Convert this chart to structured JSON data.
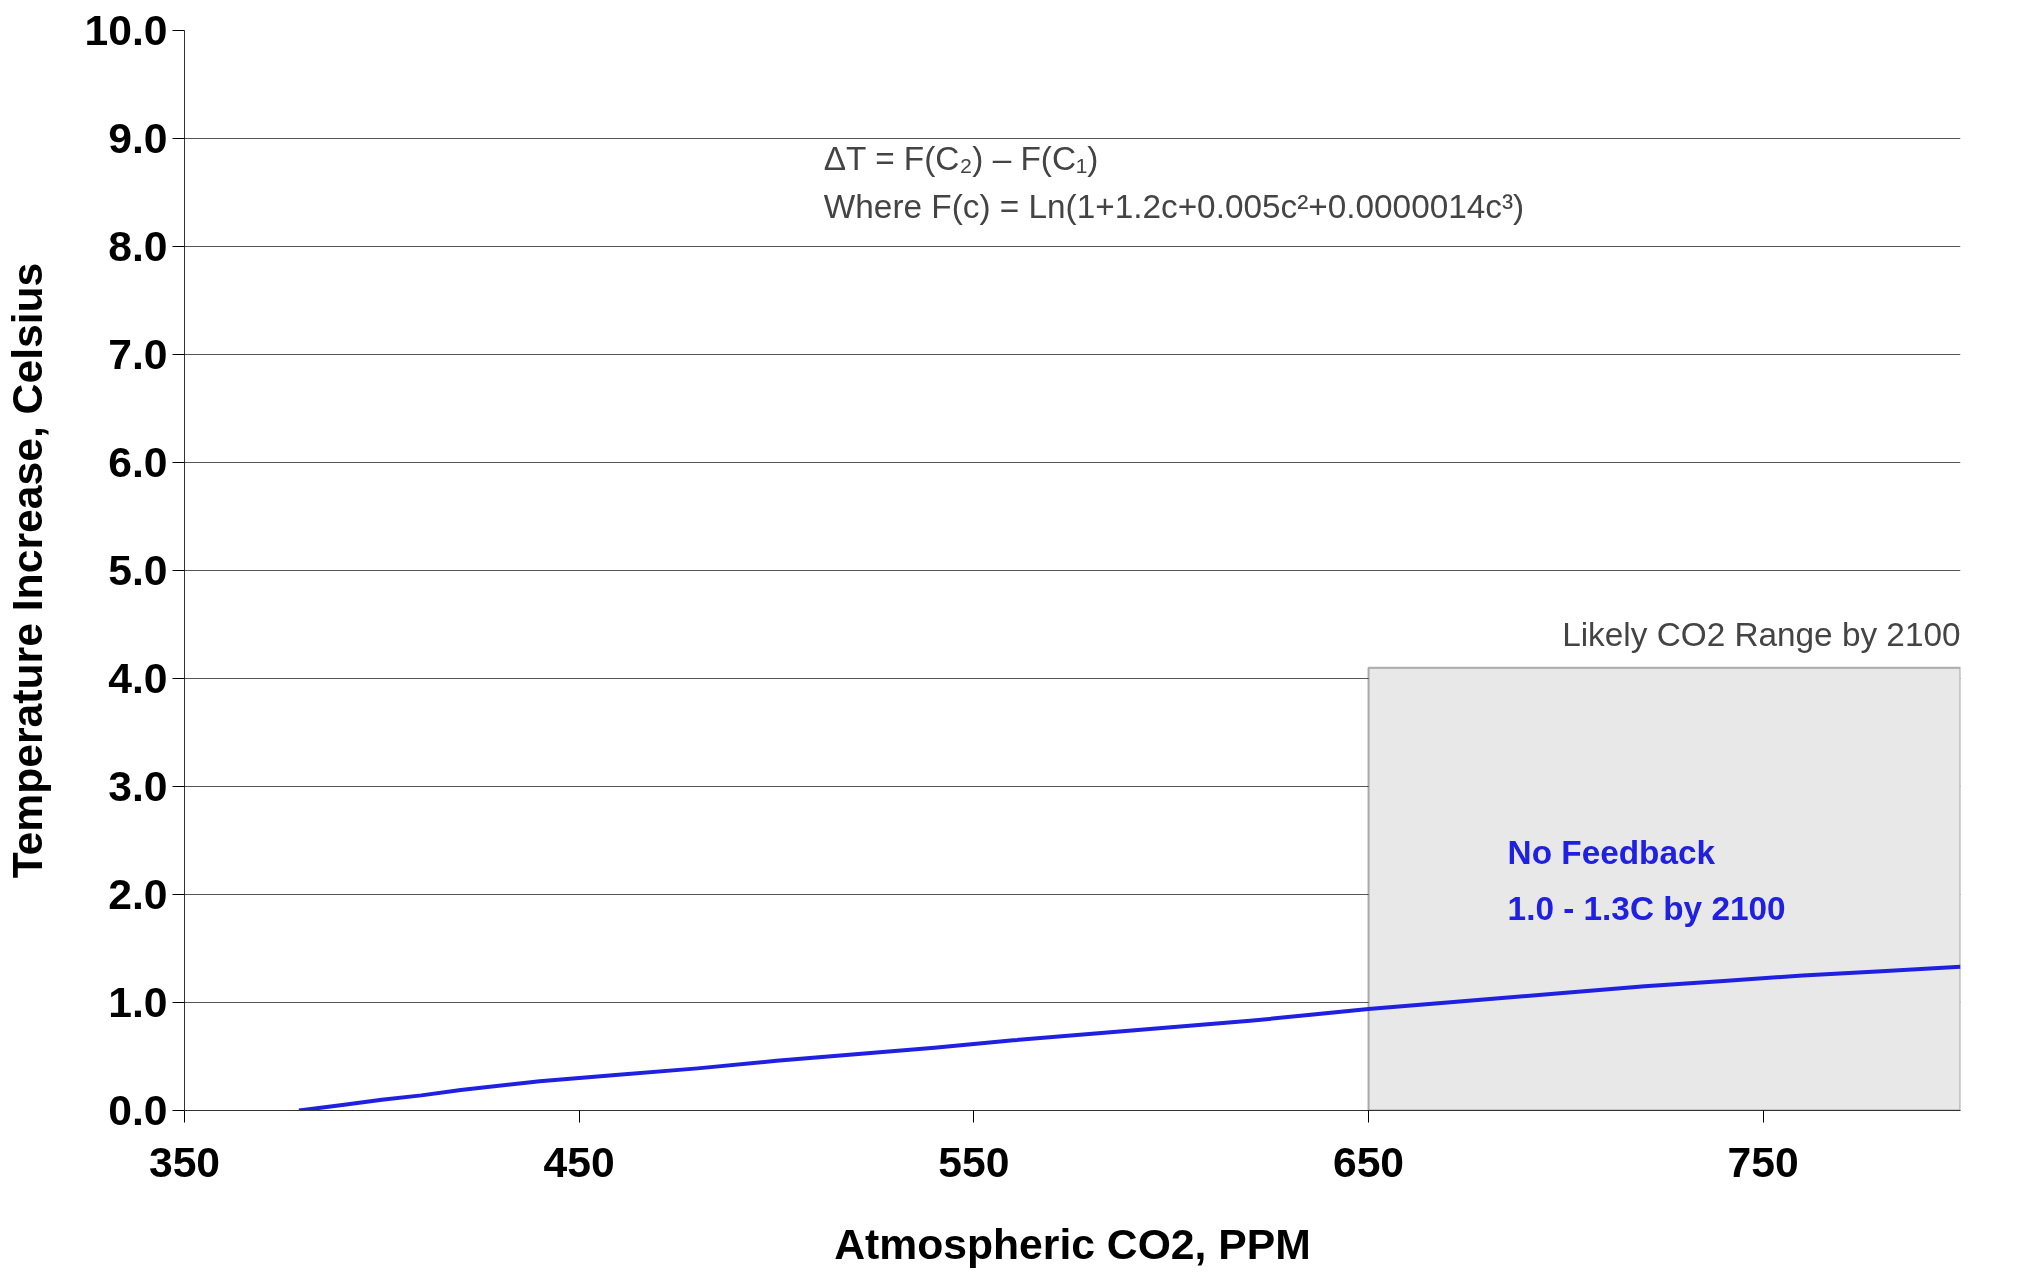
{
  "chart_data": {
    "type": "line",
    "xlabel": "Atmospheric CO2, PPM",
    "ylabel": "Temperature Increase, Celsius",
    "x": [
      379,
      390,
      400,
      410,
      420,
      440,
      460,
      480,
      500,
      520,
      540,
      560,
      580,
      600,
      620,
      650,
      680,
      700,
      720,
      740,
      760,
      780,
      800
    ],
    "series": [
      {
        "color": "#2020e0",
        "values": [
          0,
          0.05,
          0.1,
          0.14,
          0.19,
          0.27,
          0.33,
          0.39,
          0.46,
          0.52,
          0.58,
          0.65,
          0.71,
          0.77,
          0.83,
          0.94,
          1.03,
          1.09,
          1.15,
          1.2,
          1.25,
          1.29,
          1.33
        ]
      }
    ],
    "xlim": [
      350,
      800
    ],
    "ylim": [
      0,
      10
    ],
    "xticks": [
      350,
      450,
      550,
      650,
      750
    ],
    "yticks": [
      {
        "value": 0,
        "label": "0.0"
      },
      {
        "value": 1,
        "label": "1.0"
      },
      {
        "value": 2,
        "label": "2.0"
      },
      {
        "value": 3,
        "label": "3.0"
      },
      {
        "value": 4,
        "label": "4.0"
      },
      {
        "value": 5,
        "label": "5.0"
      },
      {
        "value": 6,
        "label": "6.0"
      },
      {
        "value": 7,
        "label": "7.0"
      },
      {
        "value": 8,
        "label": "8.0"
      },
      {
        "value": 9,
        "label": "9.0"
      },
      {
        "value": 10,
        "label": "10.0"
      }
    ],
    "grid": "y",
    "marker": "none",
    "line_style": "solid",
    "bands": [
      {
        "axis": "x",
        "from": 650,
        "to": 800,
        "label": "Likely CO2 Range by 2100",
        "color": "#e8e8e8"
      }
    ],
    "annotations": [
      "ΔT = F(C₂) – F(C₁)\nWhere F(c) = Ln(1+1.2c+0.005c²+0.0000014c³)",
      "No Feedback\n1.0 - 1.3C by 2100"
    ]
  }
}
